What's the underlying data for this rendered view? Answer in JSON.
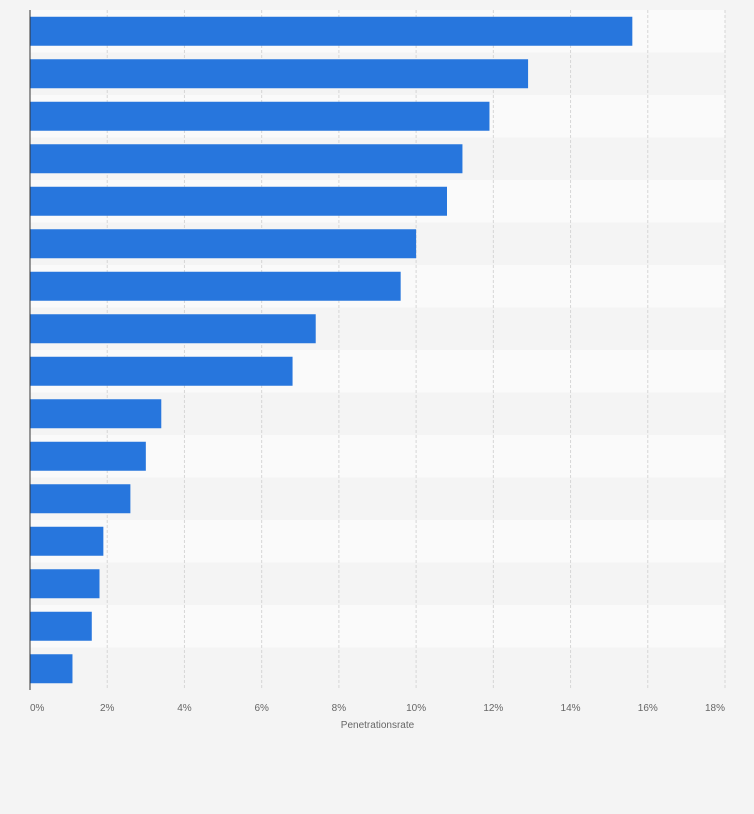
{
  "chart_data": {
    "type": "bar",
    "orientation": "horizontal",
    "categories": [
      "",
      "",
      "",
      "",
      "",
      "",
      "",
      "",
      "",
      "",
      "",
      "",
      "",
      "",
      "",
      ""
    ],
    "values": [
      15.6,
      12.9,
      11.9,
      11.2,
      10.8,
      10.0,
      9.6,
      7.4,
      6.8,
      3.4,
      3.0,
      2.6,
      1.9,
      1.8,
      1.6,
      1.1
    ],
    "xlabel": "Penetrationsrate",
    "ylabel": "",
    "xlim": [
      0,
      18
    ],
    "x_ticks": [
      0,
      2,
      4,
      6,
      8,
      10,
      12,
      14,
      16,
      18
    ],
    "x_tick_labels": [
      "0%",
      "2%",
      "4%",
      "6%",
      "8%",
      "10%",
      "12%",
      "14%",
      "16%",
      "18%"
    ],
    "grid": "vertical dashed",
    "colors": {
      "bar": "#2776dd",
      "band_light": "#fafafa",
      "band_dark": "#f4f4f4",
      "gridline": "#d6d6d6",
      "axis": "#333333",
      "tick_text": "#666666"
    }
  }
}
